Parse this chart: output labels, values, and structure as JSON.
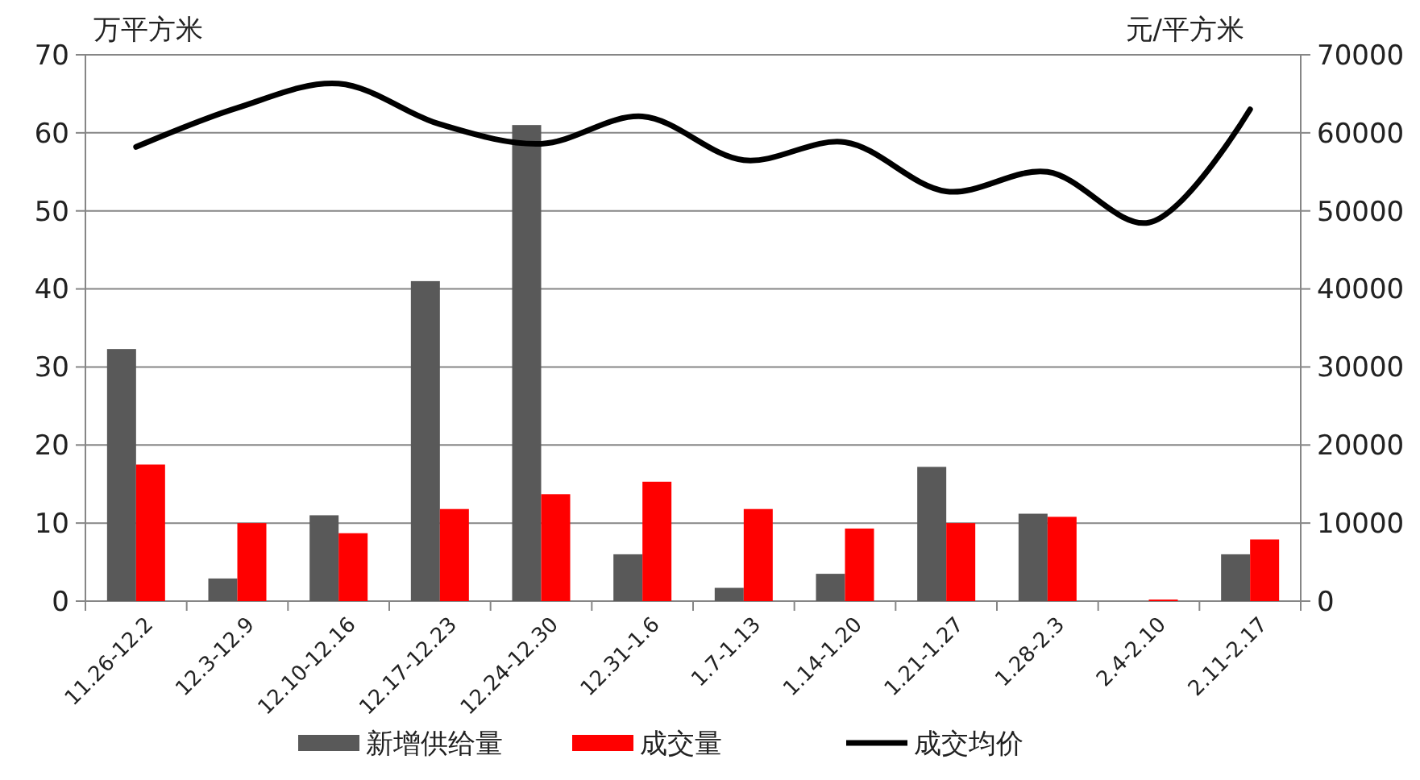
{
  "chart_data": {
    "type": "bar",
    "ylabel": "万平方米",
    "y2label": "元/平方米",
    "categories": [
      "11.26-12.2",
      "12.3-12.9",
      "12.10-12.16",
      "12.17-12.23",
      "12.24-12.30",
      "12.31-1.6",
      "1.7-1.13",
      "1.14-1.20",
      "1.21-1.27",
      "1.28-2.3",
      "2.4-2.10",
      "2.11-2.17"
    ],
    "series": [
      {
        "name": "新增供给量",
        "color": "#595959",
        "values": [
          32.3,
          2.9,
          11,
          41,
          61,
          6,
          1.7,
          3.5,
          17.2,
          11.2,
          0,
          6
        ]
      },
      {
        "name": "成交量",
        "color": "#ff0000",
        "values": [
          17.5,
          10,
          8.7,
          11.8,
          13.7,
          15.3,
          11.8,
          9.3,
          10,
          10.8,
          0.2,
          7.9
        ]
      },
      {
        "name": "成交均价",
        "type": "line",
        "axis": "y2",
        "color": "#000000",
        "values": [
          58200,
          63200,
          66300,
          61100,
          58600,
          62100,
          56500,
          58800,
          52500,
          55000,
          48500,
          63000
        ]
      }
    ],
    "ylim": [
      0,
      70
    ],
    "yticks": [
      0,
      10,
      20,
      30,
      40,
      50,
      60,
      70
    ],
    "y2lim": [
      0,
      70000
    ],
    "y2ticks": [
      0,
      10000,
      20000,
      30000,
      40000,
      50000,
      60000,
      70000
    ],
    "grid": "y",
    "legend": "bottom",
    "marker": "none",
    "line_style": "solid"
  }
}
